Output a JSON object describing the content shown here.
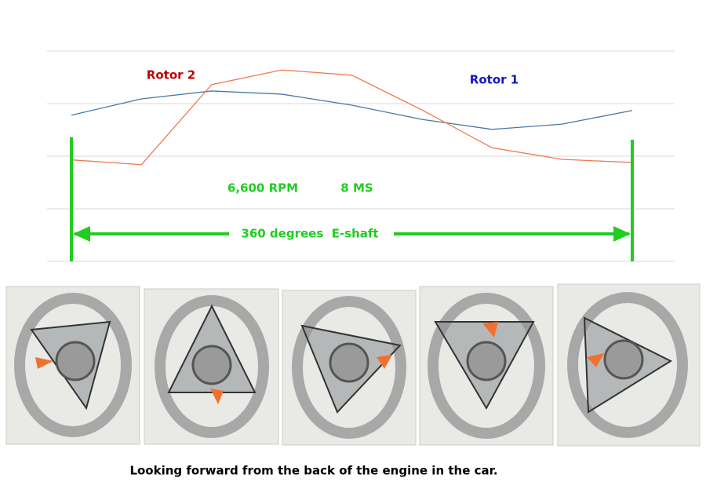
{
  "chart_data": {
    "type": "line",
    "categories": [
      null,
      null,
      null,
      null,
      null,
      null,
      null,
      null,
      null
    ],
    "series": [
      {
        "name": "Rotor 1",
        "color": "#4a78a8",
        "label_color": "#1414c8",
        "values": [
          2.78,
          3.09,
          3.24,
          3.18,
          2.97,
          2.7,
          2.51,
          2.61,
          2.87
        ]
      },
      {
        "name": "Rotor 2",
        "color": "#ee7a50",
        "label_color": "#c00000",
        "values": [
          1.93,
          1.84,
          3.36,
          3.64,
          3.54,
          2.88,
          2.16,
          1.94,
          1.88
        ]
      }
    ],
    "ylim": [
      0,
      4
    ],
    "yticks": [
      0,
      1,
      2,
      3,
      4
    ],
    "grid": true,
    "annotations": [
      "6,600 RPM",
      "8 MS",
      "360 degrees  E-shaft"
    ],
    "annotation_color": "#22cc22"
  },
  "caption": "Looking forward from the back of the engine in the car."
}
